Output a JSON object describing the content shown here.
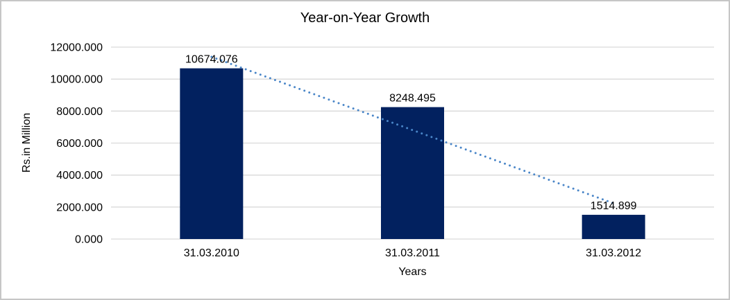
{
  "chart_data": {
    "type": "bar",
    "title": "Year-on-Year Growth",
    "xlabel": "Years",
    "ylabel": "Rs.in Million",
    "categories": [
      "31.03.2010",
      "31.03.2011",
      "31.03.2012"
    ],
    "values": [
      10674.076,
      8248.495,
      1514.899
    ],
    "data_labels": [
      "10674.076",
      "8248.495",
      "1514.899"
    ],
    "ylim": [
      0,
      12000
    ],
    "ytick_interval": 2000,
    "ytick_labels": [
      "0.000",
      "2000.000",
      "4000.000",
      "6000.000",
      "8000.000",
      "10000.000",
      "12000.000"
    ],
    "grid": "horizontal-gridlines",
    "legend": "none",
    "trendline": {
      "type": "linear",
      "style": "dotted"
    },
    "colors": {
      "bar": "#02215f",
      "trendline": "#4a86c8",
      "gridline": "#d9d9d9",
      "text": "#000000",
      "background": "#ffffff",
      "border": "#c6c6c6"
    }
  }
}
